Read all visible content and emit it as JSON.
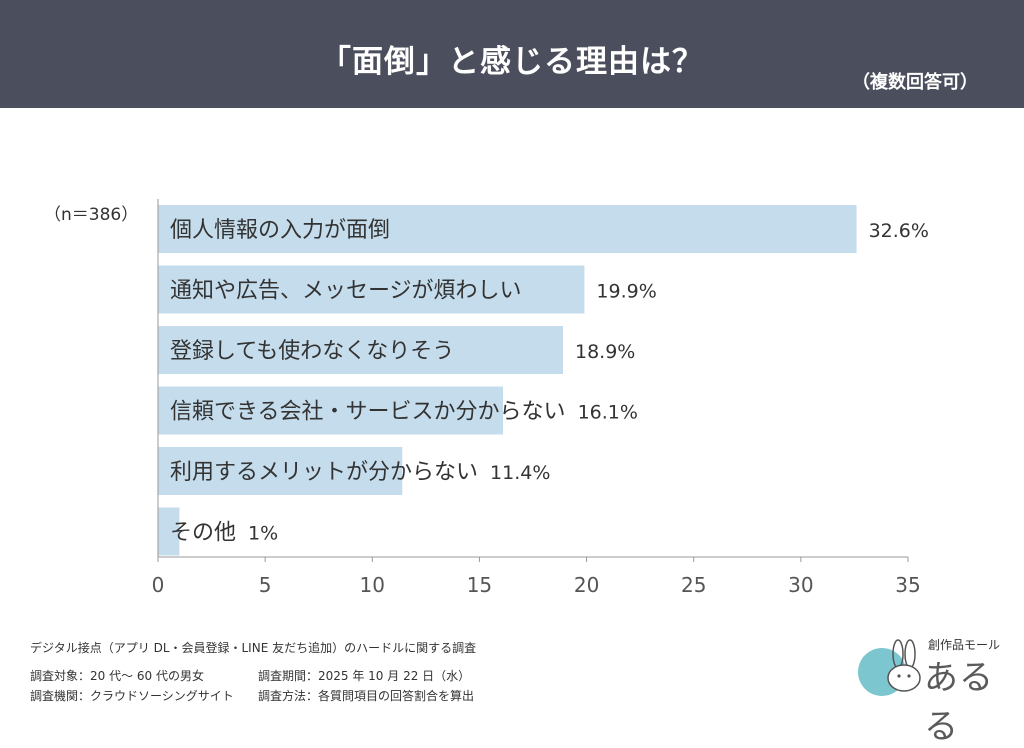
{
  "header": {
    "title": "「面倒」と感じる理由は？",
    "subtitle": "（複数回答可）"
  },
  "sample": "（n＝386）",
  "chart_data": {
    "type": "bar",
    "orientation": "horizontal",
    "categories": [
      "個人情報の入力が面倒",
      "通知や広告、メッセージが煩わしい",
      "登録しても使わなくなりそう",
      "信頼できる会社・サービスか分からない",
      "利用するメリットが分からない",
      "その他"
    ],
    "values": [
      32.6,
      19.9,
      18.9,
      16.1,
      11.4,
      1
    ],
    "value_labels": [
      "32.6%",
      "19.9%",
      "18.9%",
      "16.1%",
      "11.4%",
      "1%"
    ],
    "xlim": [
      0,
      35
    ],
    "xticks": [
      0,
      5,
      10,
      15,
      20,
      25,
      30,
      35
    ],
    "bar_color": "#c5dcec",
    "grid": false
  },
  "footer": {
    "heading": "デジタル接点（アプリ DL・会員登録・LINE 友だち追加）のハードルに関する調査",
    "target": "調査対象：20 代〜 60 代の男女",
    "agency": "調査機関：クラウドソーシングサイト",
    "period": "調査期間：2025 年 10 月 22 日（水）",
    "method": "調査方法：各質問項目の回答割合を算出"
  },
  "logo": {
    "small_text": "創作品モール",
    "main_text": "あるる",
    "icon": "rabbit-logo-icon"
  }
}
